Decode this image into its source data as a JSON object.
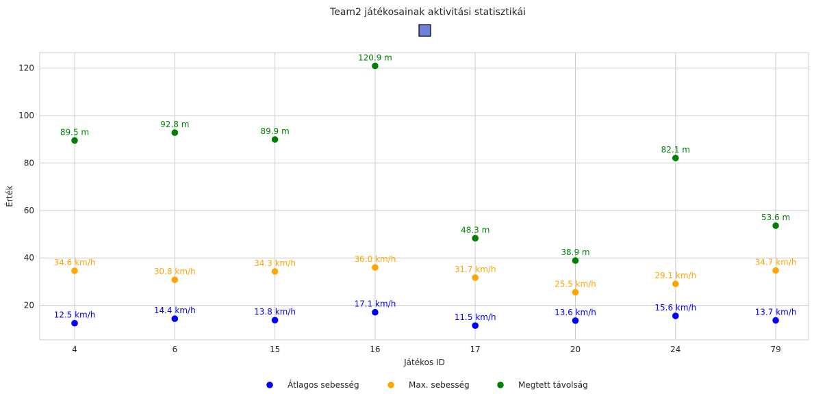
{
  "chart_data": {
    "type": "scatter",
    "title": "Team2 játékosainak aktivitási statisztikái",
    "xlabel": "Játékos ID",
    "ylabel": "Érték",
    "categories": [
      "4",
      "6",
      "15",
      "16",
      "17",
      "20",
      "24",
      "79"
    ],
    "ylim": [
      5.5,
      126.5
    ],
    "yticks": [
      20,
      40,
      60,
      80,
      100,
      120
    ],
    "grid": true,
    "legend_placement": "bottom-center",
    "title_marker_color": "#7080dc",
    "series": [
      {
        "name": "Átlagos sebesség",
        "color": "#0000ff",
        "values": [
          12.5,
          14.4,
          13.8,
          17.1,
          11.5,
          13.6,
          15.6,
          13.7
        ],
        "labels": [
          "12.5 km/h",
          "14.4 km/h",
          "13.8 km/h",
          "17.1 km/h",
          "11.5 km/h",
          "13.6 km/h",
          "15.6 km/h",
          "13.7 km/h"
        ]
      },
      {
        "name": "Max. sebesség",
        "color": "#ffa500",
        "values": [
          34.6,
          30.8,
          34.3,
          36.0,
          31.7,
          25.5,
          29.1,
          34.7
        ],
        "labels": [
          "34.6 km/h",
          "30.8 km/h",
          "34.3 km/h",
          "36.0 km/h",
          "31.7 km/h",
          "25.5 km/h",
          "29.1 km/h",
          "34.7 km/h"
        ]
      },
      {
        "name": "Megtett távolság",
        "color": "#008000",
        "values": [
          89.5,
          92.8,
          89.9,
          120.9,
          48.3,
          38.9,
          82.1,
          53.6
        ],
        "labels": [
          "89.5 m",
          "92.8 m",
          "89.9 m",
          "120.9 m",
          "48.3 m",
          "38.9 m",
          "82.1 m",
          "53.6 m"
        ]
      }
    ]
  }
}
